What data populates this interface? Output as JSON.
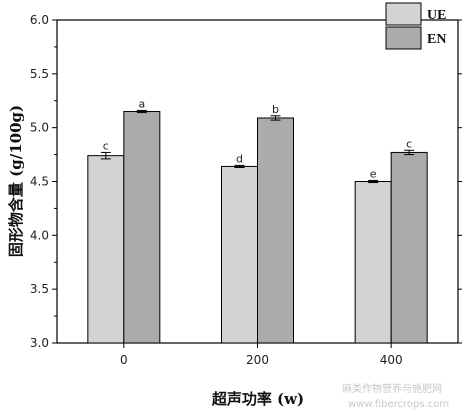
{
  "chart_data": {
    "type": "bar",
    "categories": [
      "0",
      "200",
      "400"
    ],
    "series": [
      {
        "name": "UE",
        "values": [
          4.74,
          4.64,
          4.5
        ],
        "errors": [
          0.03,
          0.01,
          0.01
        ],
        "letters": [
          "c",
          "d",
          "e"
        ],
        "color": "#d3d3d3"
      },
      {
        "name": "EN",
        "values": [
          5.15,
          5.09,
          4.77
        ],
        "errors": [
          0.01,
          0.02,
          0.02
        ],
        "letters": [
          "a",
          "b",
          "c"
        ],
        "color": "#ababab"
      }
    ],
    "xlabel": "超声功率 (w)",
    "ylabel": "固形物含量 (g/100g)",
    "ylim": [
      3.0,
      6.0
    ],
    "yticks": [
      "3.0",
      "3.5",
      "4.0",
      "4.5",
      "5.0",
      "5.5",
      "6.0"
    ],
    "legend_position": "top-right",
    "grid": false
  },
  "watermark": {
    "line1": "麻类作物营养与施肥网",
    "line2": "www.fibercrops.com"
  }
}
